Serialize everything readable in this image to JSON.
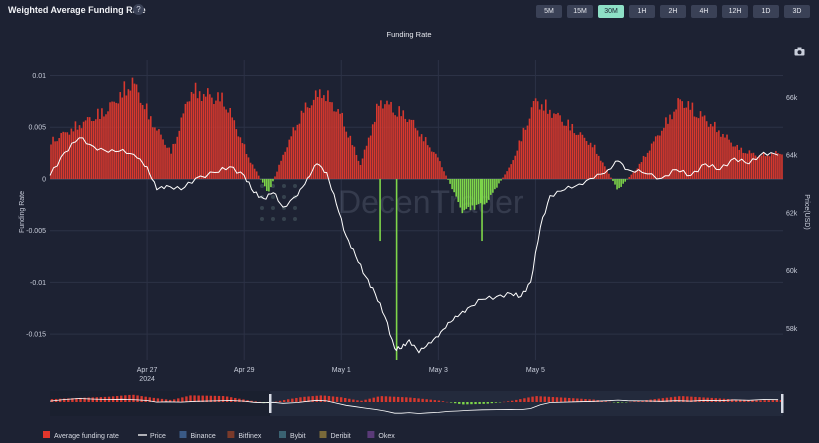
{
  "header": {
    "title": "Weighted Average Funding Rate",
    "help_icon": "?",
    "timeframes": [
      "5M",
      "15M",
      "30M",
      "1H",
      "2H",
      "4H",
      "12H",
      "1D",
      "3D"
    ],
    "active_timeframe": "30M"
  },
  "chart_data": {
    "type": "bar+line",
    "title": "Funding Rate",
    "watermark": "DecenTrader",
    "y_left": {
      "label": "Funding Rate",
      "ticks": [
        0.01,
        0.005,
        0,
        -0.005,
        -0.01,
        -0.015
      ],
      "tick_labels": [
        "0.01",
        "0.005",
        "0",
        "-0.005",
        "-0.01",
        "-0.015"
      ],
      "range": [
        -0.0175,
        0.0115
      ]
    },
    "y_right": {
      "label": "Price(USD)",
      "ticks": [
        58000,
        60000,
        62000,
        64000,
        66000
      ],
      "tick_labels": [
        "58k",
        "60k",
        "62k",
        "64k",
        "66k"
      ],
      "range": [
        56900,
        67300
      ]
    },
    "x": {
      "range_days": [
        0,
        7.55
      ],
      "ticks": [
        {
          "day": 1,
          "label": "Apr 27",
          "sub": "2024"
        },
        {
          "day": 2,
          "label": "Apr 29",
          "sub": ""
        },
        {
          "day": 3,
          "label": "May 1",
          "sub": ""
        },
        {
          "day": 4,
          "label": "May 3",
          "sub": ""
        },
        {
          "day": 5,
          "label": "May 5",
          "sub": ""
        }
      ]
    },
    "funding_rate_shape": [
      [
        0.0,
        0.004
      ],
      [
        0.3,
        0.0058
      ],
      [
        0.6,
        0.0075
      ],
      [
        0.85,
        0.0105
      ],
      [
        1.05,
        0.0062
      ],
      [
        1.25,
        0.0028
      ],
      [
        1.45,
        0.0095
      ],
      [
        1.8,
        0.0085
      ],
      [
        2.05,
        0.0022
      ],
      [
        2.25,
        -0.0015
      ],
      [
        2.45,
        0.0038
      ],
      [
        2.6,
        0.0072
      ],
      [
        2.8,
        0.0095
      ],
      [
        3.0,
        0.0068
      ],
      [
        3.2,
        0.0015
      ],
      [
        3.4,
        0.0085
      ],
      [
        3.7,
        0.0065
      ],
      [
        4.0,
        0.0022
      ],
      [
        4.25,
        -0.0035
      ],
      [
        4.5,
        -0.0025
      ],
      [
        4.75,
        0.0015
      ],
      [
        5.0,
        0.0085
      ],
      [
        5.3,
        0.0062
      ],
      [
        5.6,
        0.0035
      ],
      [
        5.85,
        -0.0012
      ],
      [
        6.05,
        0.0012
      ],
      [
        6.25,
        0.0045
      ],
      [
        6.5,
        0.0085
      ],
      [
        6.8,
        0.006
      ],
      [
        7.1,
        0.0032
      ],
      [
        7.3,
        0.0025
      ],
      [
        7.5,
        0.0028
      ]
    ],
    "funding_rate_spikes": [
      {
        "day": 3.57,
        "value": -0.0175
      },
      {
        "day": 3.4,
        "value": -0.006
      },
      {
        "day": 4.45,
        "value": -0.006
      }
    ],
    "price": [
      [
        0.0,
        63300
      ],
      [
        0.15,
        64100
      ],
      [
        0.3,
        64600
      ],
      [
        0.45,
        64300
      ],
      [
        0.6,
        64100
      ],
      [
        0.75,
        64200
      ],
      [
        0.9,
        63900
      ],
      [
        1.0,
        63600
      ],
      [
        1.1,
        62800
      ],
      [
        1.2,
        62950
      ],
      [
        1.35,
        62800
      ],
      [
        1.5,
        63200
      ],
      [
        1.7,
        63400
      ],
      [
        1.85,
        63600
      ],
      [
        2.0,
        63300
      ],
      [
        2.1,
        62700
      ],
      [
        2.2,
        62500
      ],
      [
        2.3,
        62700
      ],
      [
        2.4,
        62200
      ],
      [
        2.55,
        62600
      ],
      [
        2.65,
        63200
      ],
      [
        2.75,
        63700
      ],
      [
        2.85,
        63400
      ],
      [
        2.95,
        62300
      ],
      [
        3.05,
        61200
      ],
      [
        3.15,
        60500
      ],
      [
        3.25,
        59800
      ],
      [
        3.35,
        59200
      ],
      [
        3.45,
        58400
      ],
      [
        3.55,
        57300
      ],
      [
        3.62,
        57300
      ],
      [
        3.7,
        57600
      ],
      [
        3.8,
        57150
      ],
      [
        3.9,
        57500
      ],
      [
        4.0,
        57700
      ],
      [
        4.1,
        58200
      ],
      [
        4.2,
        58400
      ],
      [
        4.3,
        58700
      ],
      [
        4.45,
        59000
      ],
      [
        4.6,
        59100
      ],
      [
        4.75,
        59200
      ],
      [
        4.85,
        59100
      ],
      [
        4.95,
        59600
      ],
      [
        5.05,
        61500
      ],
      [
        5.15,
        62600
      ],
      [
        5.3,
        62800
      ],
      [
        5.45,
        63000
      ],
      [
        5.6,
        63200
      ],
      [
        5.75,
        63500
      ],
      [
        5.85,
        63800
      ],
      [
        5.95,
        63500
      ],
      [
        6.1,
        63400
      ],
      [
        6.3,
        63200
      ],
      [
        6.45,
        63500
      ],
      [
        6.6,
        63300
      ],
      [
        6.75,
        63700
      ],
      [
        6.9,
        63500
      ],
      [
        7.05,
        63900
      ],
      [
        7.2,
        63700
      ],
      [
        7.35,
        64100
      ],
      [
        7.5,
        64000
      ]
    ],
    "legend": [
      {
        "name": "Average funding rate",
        "color": "#e2362c",
        "kind": "square"
      },
      {
        "name": "Price",
        "color": "#ffffff",
        "kind": "line"
      },
      {
        "name": "Binance",
        "color": "#3a5a86",
        "kind": "square"
      },
      {
        "name": "Bitfinex",
        "color": "#7a3a2a",
        "kind": "square"
      },
      {
        "name": "Bybit",
        "color": "#3a6272",
        "kind": "square"
      },
      {
        "name": "Deribit",
        "color": "#7a6a3a",
        "kind": "square"
      },
      {
        "name": "Okex",
        "color": "#5a3a78",
        "kind": "square"
      }
    ],
    "positive_color": "#d8382e",
    "negative_color": "#7ed64a",
    "price_color": "#ffffff",
    "grid": true
  }
}
